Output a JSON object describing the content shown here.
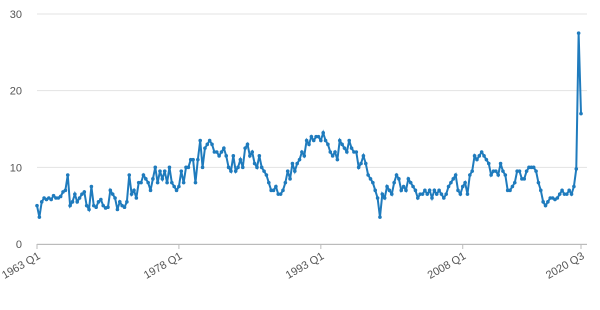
{
  "chart_data": {
    "type": "line",
    "color": "#1f7bbd",
    "grid": true,
    "ylim": [
      0,
      30
    ],
    "yticks": [
      0,
      10,
      20,
      30
    ],
    "categories": [
      "1963 Q1",
      null,
      null,
      null,
      null,
      null,
      null,
      null,
      null,
      null,
      null,
      null,
      null,
      null,
      null,
      null,
      null,
      null,
      null,
      null,
      null,
      null,
      null,
      null,
      null,
      null,
      null,
      null,
      null,
      null,
      null,
      null,
      null,
      null,
      null,
      null,
      null,
      null,
      null,
      null,
      null,
      null,
      null,
      null,
      null,
      null,
      null,
      null,
      null,
      null,
      null,
      null,
      null,
      null,
      null,
      null,
      null,
      null,
      null,
      null,
      "1978 Q1",
      null,
      null,
      null,
      null,
      null,
      null,
      null,
      null,
      null,
      null,
      null,
      null,
      null,
      null,
      null,
      null,
      null,
      null,
      null,
      null,
      null,
      null,
      null,
      null,
      null,
      null,
      null,
      null,
      null,
      null,
      null,
      null,
      null,
      null,
      null,
      null,
      null,
      null,
      null,
      null,
      null,
      null,
      null,
      null,
      null,
      null,
      null,
      null,
      null,
      null,
      null,
      null,
      null,
      null,
      null,
      null,
      null,
      null,
      null,
      "1993 Q1",
      null,
      null,
      null,
      null,
      null,
      null,
      null,
      null,
      null,
      null,
      null,
      null,
      null,
      null,
      null,
      null,
      null,
      null,
      null,
      null,
      null,
      null,
      null,
      null,
      null,
      null,
      null,
      null,
      null,
      null,
      null,
      null,
      null,
      null,
      null,
      null,
      null,
      null,
      null,
      null,
      null,
      null,
      null,
      null,
      null,
      null,
      null,
      null,
      null,
      null,
      null,
      null,
      null,
      null,
      null,
      null,
      null,
      null,
      null,
      "2008 Q1",
      null,
      null,
      null,
      null,
      null,
      null,
      null,
      null,
      null,
      null,
      null,
      null,
      null,
      null,
      null,
      null,
      null,
      null,
      null,
      null,
      null,
      null,
      null,
      null,
      null,
      null,
      null,
      null,
      null,
      null,
      null,
      null,
      null,
      null,
      null,
      null,
      null,
      null,
      null,
      null,
      null,
      null,
      null,
      null,
      null,
      null,
      null,
      null,
      null,
      "2020 Q3"
    ],
    "values": [
      5.0,
      3.5,
      5.5,
      6.0,
      5.8,
      6.0,
      5.8,
      6.3,
      6.0,
      6.0,
      6.2,
      6.8,
      7.0,
      9.0,
      5.0,
      5.5,
      6.5,
      5.5,
      6.0,
      6.5,
      6.8,
      5.0,
      4.5,
      7.5,
      5.0,
      4.8,
      5.5,
      5.8,
      5.0,
      4.7,
      4.8,
      7.0,
      6.5,
      6.0,
      4.5,
      5.5,
      5.0,
      4.8,
      5.5,
      9.0,
      6.5,
      7.0,
      6.0,
      8.0,
      8.0,
      9.0,
      8.5,
      8.0,
      7.0,
      8.5,
      10.0,
      8.0,
      9.5,
      8.5,
      9.5,
      8.0,
      10.0,
      8.0,
      7.5,
      7.0,
      7.5,
      9.5,
      8.0,
      10.0,
      10.0,
      11.0,
      11.0,
      8.0,
      11.0,
      13.5,
      10.0,
      12.5,
      13.0,
      13.5,
      13.0,
      12.0,
      12.0,
      11.5,
      12.0,
      12.5,
      11.5,
      10.0,
      9.5,
      11.5,
      9.5,
      10.0,
      11.0,
      10.0,
      12.5,
      13.0,
      11.5,
      12.0,
      10.5,
      10.0,
      11.5,
      10.0,
      9.5,
      9.0,
      8.0,
      7.0,
      7.0,
      7.5,
      6.5,
      6.5,
      7.0,
      8.0,
      9.5,
      8.5,
      10.5,
      9.5,
      10.5,
      11.0,
      12.0,
      11.5,
      13.5,
      13.0,
      14.0,
      13.5,
      14.0,
      14.0,
      13.5,
      14.5,
      13.5,
      13.0,
      12.0,
      11.5,
      12.0,
      11.0,
      13.5,
      13.0,
      12.5,
      12.0,
      13.5,
      12.5,
      12.0,
      12.0,
      10.0,
      10.5,
      11.5,
      10.5,
      9.0,
      8.5,
      8.0,
      7.0,
      6.0,
      3.5,
      6.5,
      6.0,
      7.5,
      7.0,
      6.5,
      8.0,
      9.0,
      8.5,
      7.0,
      7.5,
      7.0,
      8.5,
      8.0,
      7.5,
      7.0,
      6.0,
      6.5,
      6.5,
      7.0,
      6.5,
      7.0,
      6.0,
      7.0,
      6.5,
      7.0,
      6.5,
      6.0,
      6.5,
      7.5,
      8.0,
      8.5,
      9.0,
      7.0,
      6.5,
      7.5,
      8.0,
      6.5,
      9.0,
      9.5,
      11.5,
      11.0,
      11.5,
      12.0,
      11.5,
      11.0,
      10.5,
      9.0,
      9.5,
      9.5,
      9.0,
      10.5,
      9.5,
      9.0,
      7.0,
      7.0,
      7.5,
      8.0,
      9.5,
      9.5,
      8.5,
      8.5,
      9.5,
      10.0,
      10.0,
      10.0,
      9.5,
      8.0,
      7.0,
      5.5,
      5.0,
      5.5,
      6.0,
      6.0,
      5.8,
      6.0,
      6.5,
      7.0,
      6.5,
      6.5,
      7.0,
      6.5,
      7.5,
      9.8,
      27.5,
      17.0
    ]
  }
}
